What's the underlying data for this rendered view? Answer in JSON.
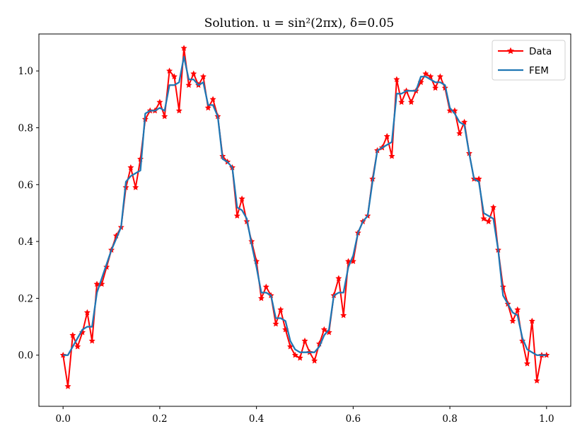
{
  "chart_data": {
    "type": "line",
    "title": "Solution. u = sin²(2πx), δ=0.05",
    "xlabel": "",
    "ylabel": "",
    "xlim": [
      -0.05,
      1.05
    ],
    "ylim": [
      -0.18,
      1.13
    ],
    "xticks": [
      0.0,
      0.2,
      0.4,
      0.6,
      0.8,
      1.0
    ],
    "xtick_labels": [
      "0.0",
      "0.2",
      "0.4",
      "0.6",
      "0.8",
      "1.0"
    ],
    "yticks": [
      0.0,
      0.2,
      0.4,
      0.6,
      0.8,
      1.0
    ],
    "ytick_labels": [
      "0.0",
      "0.2",
      "0.4",
      "0.6",
      "0.8",
      "1.0"
    ],
    "grid": false,
    "legend_position": "top-right",
    "x": [
      0.0,
      0.01,
      0.02,
      0.03,
      0.04,
      0.05,
      0.06,
      0.07,
      0.08,
      0.09,
      0.1,
      0.11,
      0.12,
      0.13,
      0.14,
      0.15,
      0.16,
      0.17,
      0.18,
      0.19,
      0.2,
      0.21,
      0.22,
      0.23,
      0.24,
      0.25,
      0.26,
      0.27,
      0.28,
      0.29,
      0.3,
      0.31,
      0.32,
      0.33,
      0.34,
      0.35,
      0.36,
      0.37,
      0.38,
      0.39,
      0.4,
      0.41,
      0.42,
      0.43,
      0.44,
      0.45,
      0.46,
      0.47,
      0.48,
      0.49,
      0.5,
      0.51,
      0.52,
      0.53,
      0.54,
      0.55,
      0.56,
      0.57,
      0.58,
      0.59,
      0.6,
      0.61,
      0.62,
      0.63,
      0.64,
      0.65,
      0.66,
      0.67,
      0.68,
      0.69,
      0.7,
      0.71,
      0.72,
      0.73,
      0.74,
      0.75,
      0.76,
      0.77,
      0.78,
      0.79,
      0.8,
      0.81,
      0.82,
      0.83,
      0.84,
      0.85,
      0.86,
      0.87,
      0.88,
      0.89,
      0.9,
      0.91,
      0.92,
      0.93,
      0.94,
      0.95,
      0.96,
      0.97,
      0.98,
      0.99,
      1.0
    ],
    "series": [
      {
        "name": "Data",
        "color": "#ff0000",
        "marker": "star",
        "values": [
          0.0,
          -0.11,
          0.07,
          0.03,
          0.08,
          0.15,
          0.05,
          0.25,
          0.25,
          0.31,
          0.37,
          0.42,
          0.45,
          0.59,
          0.66,
          0.59,
          0.69,
          0.83,
          0.86,
          0.86,
          0.89,
          0.84,
          1.0,
          0.98,
          0.86,
          1.08,
          0.95,
          0.99,
          0.95,
          0.98,
          0.87,
          0.9,
          0.84,
          0.7,
          0.68,
          0.66,
          0.49,
          0.55,
          0.47,
          0.4,
          0.33,
          0.2,
          0.24,
          0.21,
          0.11,
          0.16,
          0.09,
          0.03,
          0.0,
          -0.01,
          0.05,
          0.01,
          -0.02,
          0.04,
          0.09,
          0.08,
          0.21,
          0.27,
          0.14,
          0.33,
          0.33,
          0.43,
          0.47,
          0.49,
          0.62,
          0.72,
          0.73,
          0.77,
          0.7,
          0.97,
          0.89,
          0.93,
          0.89,
          0.93,
          0.96,
          0.99,
          0.98,
          0.94,
          0.98,
          0.94,
          0.86,
          0.86,
          0.78,
          0.82,
          0.71,
          0.62,
          0.62,
          0.48,
          0.47,
          0.52,
          0.37,
          0.24,
          0.18,
          0.12,
          0.16,
          0.05,
          -0.03,
          0.12,
          -0.09,
          0.0,
          0.0
        ]
      },
      {
        "name": "FEM",
        "color": "#1f77b4",
        "marker": "none",
        "values": [
          0.0,
          0.0,
          0.03,
          0.06,
          0.09,
          0.1,
          0.1,
          0.22,
          0.27,
          0.32,
          0.37,
          0.41,
          0.45,
          0.61,
          0.63,
          0.64,
          0.65,
          0.85,
          0.86,
          0.86,
          0.87,
          0.86,
          0.95,
          0.95,
          0.96,
          1.05,
          0.97,
          0.97,
          0.95,
          0.96,
          0.88,
          0.88,
          0.84,
          0.69,
          0.68,
          0.66,
          0.52,
          0.51,
          0.48,
          0.39,
          0.31,
          0.22,
          0.22,
          0.21,
          0.13,
          0.13,
          0.12,
          0.05,
          0.02,
          0.01,
          0.01,
          0.01,
          0.01,
          0.03,
          0.07,
          0.09,
          0.21,
          0.22,
          0.22,
          0.31,
          0.35,
          0.43,
          0.47,
          0.49,
          0.61,
          0.72,
          0.73,
          0.74,
          0.75,
          0.92,
          0.92,
          0.93,
          0.93,
          0.93,
          0.98,
          0.98,
          0.97,
          0.96,
          0.96,
          0.95,
          0.87,
          0.85,
          0.82,
          0.81,
          0.71,
          0.62,
          0.61,
          0.5,
          0.49,
          0.48,
          0.37,
          0.21,
          0.18,
          0.15,
          0.14,
          0.06,
          0.02,
          0.01,
          0.0,
          0.0,
          0.0
        ]
      }
    ]
  }
}
